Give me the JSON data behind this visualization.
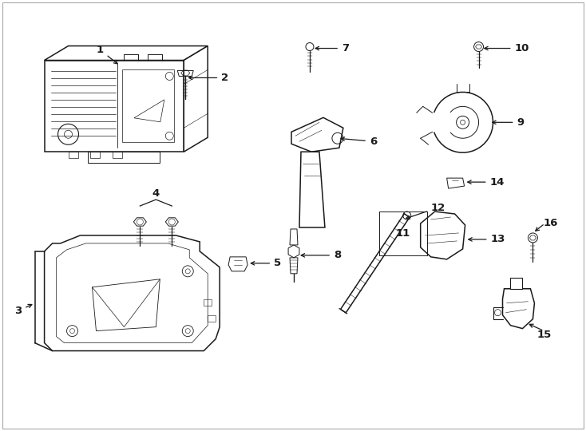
{
  "bg_color": "#ffffff",
  "line_color": "#1a1a1a",
  "fig_width": 7.34,
  "fig_height": 5.4,
  "dpi": 100,
  "border_color": "#aaaaaa",
  "label_fontsize": 9.5
}
